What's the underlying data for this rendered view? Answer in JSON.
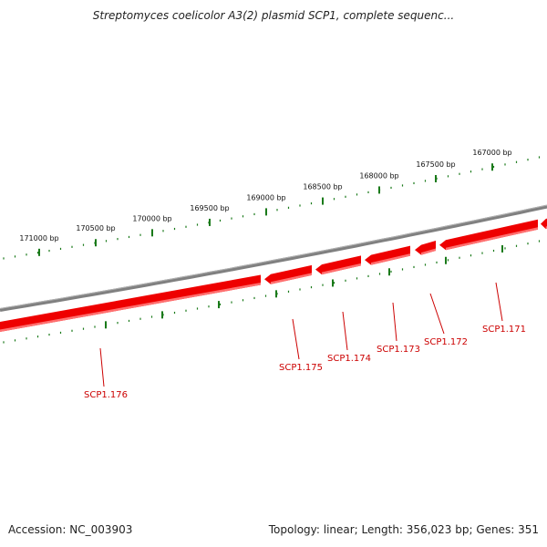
{
  "title": "Streptomyces coelicolor A3(2) plasmid SCP1, complete sequenc...",
  "footer": {
    "accession": "Accession: NC_003903",
    "summary": "Topology: linear; Length: 356,023 bp; Genes: 351"
  },
  "colors": {
    "backbone": "#808080",
    "gene": "#ee0000",
    "gene_highlight": "#ff7070",
    "tick": "#1a7a1a",
    "gene_label": "#cc0000"
  },
  "scale_ticks": [
    {
      "label": "171000 bp"
    },
    {
      "label": "170500 bp"
    },
    {
      "label": "170000 bp"
    },
    {
      "label": "169500 bp"
    },
    {
      "label": "169000 bp"
    },
    {
      "label": "168500 bp"
    },
    {
      "label": "168000 bp"
    },
    {
      "label": "167500 bp"
    },
    {
      "label": "167000 bp"
    }
  ],
  "genes": [
    {
      "label": "SCP1.176"
    },
    {
      "label": "SCP1.175"
    },
    {
      "label": "SCP1.174"
    },
    {
      "label": "SCP1.173"
    },
    {
      "label": "SCP1.172"
    },
    {
      "label": "SCP1.171"
    }
  ]
}
